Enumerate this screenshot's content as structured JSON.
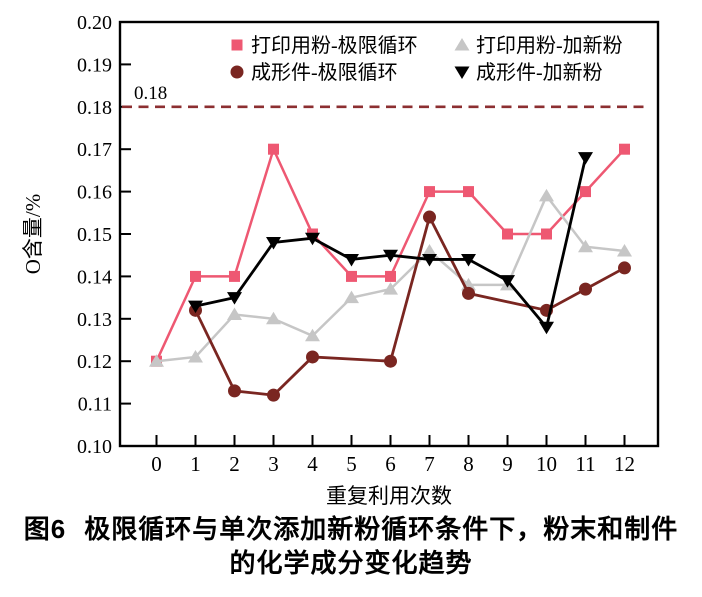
{
  "figure": {
    "caption": {
      "number": "图6",
      "line1": "极限循环与单次添加新粉循环条件下，粉末和制件",
      "line2": "的化学成分变化趋势"
    }
  },
  "chart_data": {
    "type": "line",
    "title": "",
    "xlabel": "重复利用次数",
    "ylabel": "O含量/%",
    "x_ticks": [
      "0",
      "1",
      "2",
      "3",
      "4",
      "5",
      "6",
      "7",
      "8",
      "9",
      "10",
      "11",
      "12"
    ],
    "y_min": 0.1,
    "y_max": 0.2,
    "y_tick_step": 0.01,
    "y_tick_labels": [
      "0.20",
      "0.19",
      "0.18",
      "0.17",
      "0.16",
      "0.15",
      "0.14",
      "0.13",
      "0.12",
      "0.11",
      "0.10"
    ],
    "grid": "off",
    "legend_position": "top-inside-two-columns",
    "threshold": {
      "value": 0.18,
      "label": "0.18",
      "color": "#8c2f31",
      "line_style": "dashed"
    },
    "axis_color": "#000000",
    "series": [
      {
        "name": "打印用粉-极限循环",
        "marker": "square",
        "color": "#ee5872",
        "points": [
          [
            0,
            0.12
          ],
          [
            1,
            0.14
          ],
          [
            2,
            0.14
          ],
          [
            3,
            0.17
          ],
          [
            4,
            0.15
          ],
          [
            5,
            0.14
          ],
          [
            6,
            0.14
          ],
          [
            7,
            0.16
          ],
          [
            8,
            0.16
          ],
          [
            9,
            0.15
          ],
          [
            10,
            0.15
          ],
          [
            11,
            0.16
          ],
          [
            12,
            0.17
          ]
        ]
      },
      {
        "name": "打印用粉-加新粉",
        "marker": "triangle-up",
        "color": "#c6c6c6",
        "points": [
          [
            0,
            0.12
          ],
          [
            1,
            0.121
          ],
          [
            2,
            0.131
          ],
          [
            3,
            0.13
          ],
          [
            4,
            0.126
          ],
          [
            5,
            0.135
          ],
          [
            6,
            0.137
          ],
          [
            7,
            0.146
          ],
          [
            8,
            0.138
          ],
          [
            9,
            0.138
          ],
          [
            10,
            0.159
          ],
          [
            11,
            0.147
          ],
          [
            12,
            0.146
          ]
        ]
      },
      {
        "name": "成形件-极限循环",
        "marker": "circle",
        "color": "#7a2621",
        "points": [
          [
            1,
            0.132
          ],
          [
            2,
            0.113
          ],
          [
            3,
            0.112
          ],
          [
            4,
            0.121
          ],
          [
            6,
            0.12
          ],
          [
            7,
            0.154
          ],
          [
            8,
            0.136
          ],
          [
            10,
            0.132
          ],
          [
            11,
            0.137
          ],
          [
            12,
            0.142
          ]
        ]
      },
      {
        "name": "成形件-加新粉",
        "marker": "triangle-down",
        "color": "#000000",
        "points": [
          [
            1,
            0.133
          ],
          [
            2,
            0.135
          ],
          [
            3,
            0.148
          ],
          [
            4,
            0.149
          ],
          [
            5,
            0.144
          ],
          [
            6,
            0.145
          ],
          [
            7,
            0.144
          ],
          [
            8,
            0.144
          ],
          [
            9,
            0.139
          ],
          [
            10,
            0.128
          ],
          [
            11,
            0.168
          ]
        ]
      }
    ]
  }
}
